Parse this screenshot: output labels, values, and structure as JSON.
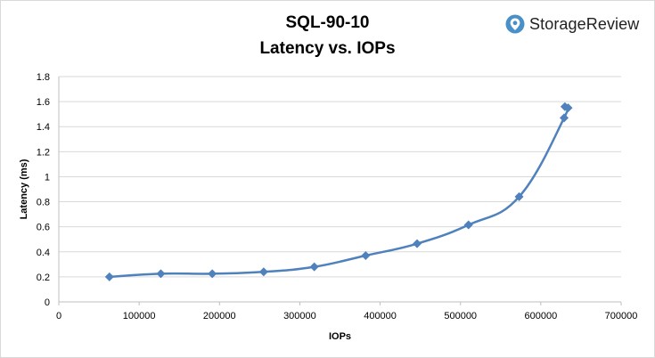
{
  "logo": {
    "text": "StorageReview",
    "icon": "storagereview-logo-icon",
    "icon_color": "#4a90c8"
  },
  "chart_data": {
    "type": "scatter",
    "title": "SQL-90-10",
    "subtitle": "Latency vs. IOPs",
    "xlabel": "IOPs",
    "ylabel": "Latency (ms)",
    "xlim": [
      0,
      700000
    ],
    "ylim": [
      0,
      1.8
    ],
    "x_ticks": [
      "0",
      "100000",
      "200000",
      "300000",
      "400000",
      "500000",
      "600000",
      "700000"
    ],
    "y_ticks": [
      "0",
      "0.2",
      "0.4",
      "0.6",
      "0.8",
      "1",
      "1.2",
      "1.4",
      "1.6",
      "1.8"
    ],
    "grid": "horizontal",
    "legend": "none",
    "line_style": "smoothed line with diamond markers",
    "series": [
      {
        "color": "#4f81bd",
        "x": [
          63000,
          127000,
          191000,
          255000,
          318000,
          382000,
          446000,
          510000,
          573000,
          629000,
          630000,
          634000
        ],
        "y": [
          0.2,
          0.225,
          0.225,
          0.24,
          0.28,
          0.37,
          0.465,
          0.615,
          0.84,
          1.47,
          1.56,
          1.55
        ]
      }
    ]
  }
}
